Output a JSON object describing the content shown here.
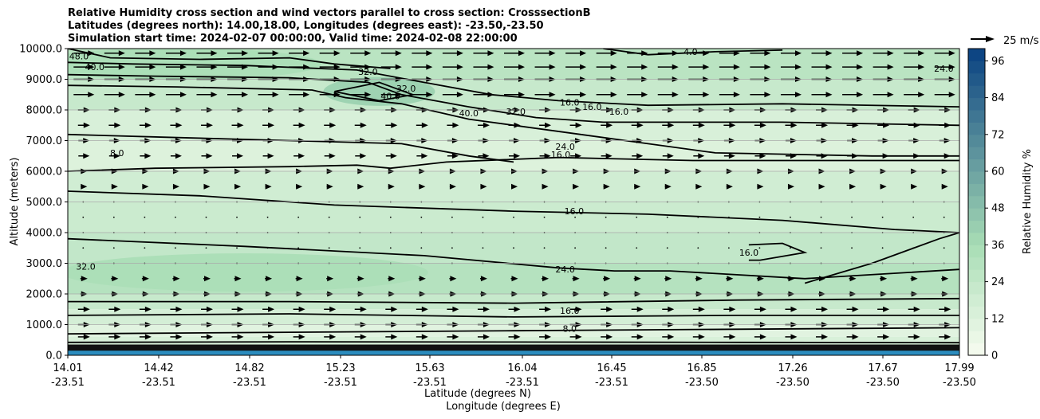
{
  "title_lines": [
    "Relative Humidity cross section and wind vectors parallel to cross section: CrosssectionB",
    "Latitudes (degrees north): 14.00,18.00, Longitudes (degrees east): -23.50,-23.50",
    "Simulation start time: 2024-02-07 00:00:00, Valid time: 2024-02-08 22:00:00"
  ],
  "chart_data": {
    "type": "heatmap",
    "ylabel": "Altitude (meters)",
    "xlabel_lat": "Latitude (degrees N)",
    "xlabel_lon": "Longitude (degrees E)",
    "ylim": [
      0,
      10000
    ],
    "y_ticks": [
      "0.0",
      "1000.0",
      "2000.0",
      "3000.0",
      "4000.0",
      "5000.0",
      "6000.0",
      "7000.0",
      "8000.0",
      "9000.0",
      "10000.0"
    ],
    "y_tick_values": [
      0,
      1000,
      2000,
      3000,
      4000,
      5000,
      6000,
      7000,
      8000,
      9000,
      10000
    ],
    "x_ticks": [
      {
        "lat": "14.01",
        "lon": "-23.51"
      },
      {
        "lat": "14.42",
        "lon": "-23.51"
      },
      {
        "lat": "14.82",
        "lon": "-23.51"
      },
      {
        "lat": "15.23",
        "lon": "-23.51"
      },
      {
        "lat": "15.63",
        "lon": "-23.51"
      },
      {
        "lat": "16.04",
        "lon": "-23.51"
      },
      {
        "lat": "16.45",
        "lon": "-23.51"
      },
      {
        "lat": "16.85",
        "lon": "-23.50"
      },
      {
        "lat": "17.26",
        "lon": "-23.50"
      },
      {
        "lat": "17.67",
        "lon": "-23.50"
      },
      {
        "lat": "17.99",
        "lon": "-23.50"
      }
    ],
    "x_range": [
      14.01,
      17.99
    ],
    "y_grid": true,
    "colorbar": {
      "label": "Relative Humidity %",
      "range": [
        0,
        100
      ],
      "ticks": [
        "0",
        "12",
        "24",
        "36",
        "48",
        "60",
        "72",
        "84",
        "96"
      ],
      "tick_values": [
        0,
        12,
        24,
        36,
        48,
        60,
        72,
        84,
        96
      ],
      "color_low": "#f7fcf0",
      "color_mid": "#a8ddb5",
      "color_high": "#084081"
    },
    "wind_key": {
      "label": "25 m/s",
      "speed": 25
    },
    "contour_labels": [
      {
        "text": "48.0",
        "x": 14.06,
        "y": 9750
      },
      {
        "text": "40.0",
        "x": 14.13,
        "y": 9400
      },
      {
        "text": "32.0",
        "x": 15.35,
        "y": 9250
      },
      {
        "text": "40.0",
        "x": 15.45,
        "y": 8450
      },
      {
        "text": "32.0",
        "x": 15.52,
        "y": 8700
      },
      {
        "text": "40.0",
        "x": 15.8,
        "y": 7900
      },
      {
        "text": "32.0",
        "x": 16.01,
        "y": 7950
      },
      {
        "text": "16.0",
        "x": 16.25,
        "y": 8250
      },
      {
        "text": "16.0",
        "x": 16.35,
        "y": 8100
      },
      {
        "text": "16.0",
        "x": 16.47,
        "y": 7950
      },
      {
        "text": "8.0",
        "x": 14.23,
        "y": 6600
      },
      {
        "text": "24.0",
        "x": 16.23,
        "y": 6800
      },
      {
        "text": "16.0",
        "x": 16.21,
        "y": 6550
      },
      {
        "text": "16.0",
        "x": 16.27,
        "y": 4700
      },
      {
        "text": "32.0",
        "x": 14.09,
        "y": 2900
      },
      {
        "text": "24.0",
        "x": 16.23,
        "y": 2800
      },
      {
        "text": "16.0",
        "x": 17.05,
        "y": 3350
      },
      {
        "text": "16.0",
        "x": 16.25,
        "y": 1450
      },
      {
        "text": "8.0",
        "x": 16.25,
        "y": 870
      },
      {
        "text": "4.0",
        "x": 16.79,
        "y": 9900
      },
      {
        "text": "24.0",
        "x": 17.92,
        "y": 9350
      }
    ]
  }
}
